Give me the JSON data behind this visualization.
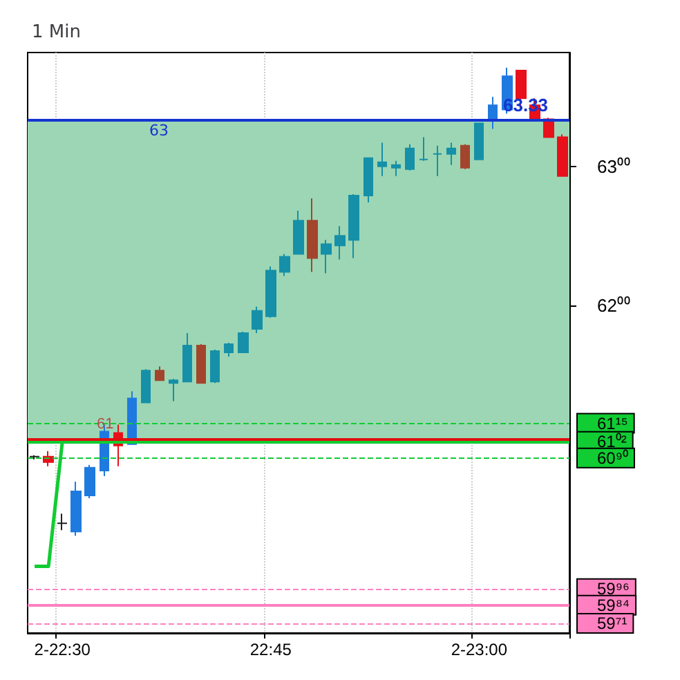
{
  "chart_data": {
    "type": "candlestick",
    "title": "1 Min",
    "categories": [
      null,
      null,
      "2-22:30",
      null,
      null,
      null,
      null,
      null,
      null,
      null,
      null,
      null,
      null,
      null,
      null,
      null,
      null,
      "22:45",
      null,
      null,
      null,
      null,
      null,
      null,
      null,
      null,
      null,
      null,
      null,
      null,
      null,
      null,
      "2-23:00",
      null,
      null,
      null,
      null,
      null,
      null
    ],
    "ohlc": [
      [
        60.91,
        60.92,
        60.89,
        60.91
      ],
      [
        60.91,
        60.95,
        60.84,
        60.87
      ],
      [
        60.43,
        60.5,
        60.38,
        60.43
      ],
      [
        60.37,
        60.73,
        60.34,
        60.66
      ],
      [
        60.63,
        60.85,
        60.61,
        60.83
      ],
      [
        60.81,
        61.14,
        60.77,
        61.09
      ],
      [
        61.08,
        61.14,
        60.84,
        60.99
      ],
      [
        61.0,
        61.38,
        61.0,
        61.33
      ],
      [
        61.3,
        61.54,
        61.3,
        61.53
      ],
      [
        61.53,
        61.56,
        61.46,
        61.46
      ],
      [
        61.44,
        61.47,
        61.31,
        61.46
      ],
      [
        61.45,
        61.8,
        61.45,
        61.71
      ],
      [
        61.71,
        61.72,
        61.44,
        61.44
      ],
      [
        61.45,
        61.68,
        61.44,
        61.67
      ],
      [
        61.66,
        61.73,
        61.63,
        61.72
      ],
      [
        61.66,
        61.81,
        61.66,
        61.8
      ],
      [
        61.83,
        61.99,
        61.8,
        61.96
      ],
      [
        61.92,
        62.28,
        61.91,
        62.25
      ],
      [
        62.24,
        62.37,
        62.21,
        62.35
      ],
      [
        62.37,
        62.68,
        62.37,
        62.61
      ],
      [
        62.61,
        62.77,
        62.24,
        62.34
      ],
      [
        62.37,
        62.47,
        62.23,
        62.44
      ],
      [
        62.43,
        62.57,
        62.33,
        62.5
      ],
      [
        62.47,
        62.8,
        62.34,
        62.79
      ],
      [
        62.79,
        63.06,
        62.74,
        63.06
      ],
      [
        63.0,
        63.17,
        62.93,
        63.03
      ],
      [
        62.99,
        63.04,
        62.93,
        63.01
      ],
      [
        62.98,
        63.16,
        62.97,
        63.13
      ],
      [
        63.05,
        63.21,
        63.04,
        63.05
      ],
      [
        63.09,
        63.15,
        62.93,
        63.09
      ],
      [
        63.09,
        63.17,
        63.01,
        63.13
      ],
      [
        63.15,
        63.16,
        62.98,
        62.99
      ],
      [
        63.05,
        63.31,
        63.05,
        63.31
      ],
      [
        63.33,
        63.5,
        63.27,
        63.44
      ],
      [
        63.41,
        63.71,
        63.38,
        63.65
      ],
      [
        63.69,
        63.69,
        63.41,
        63.49
      ],
      [
        63.44,
        63.49,
        63.33,
        63.34
      ],
      [
        63.34,
        63.35,
        63.21,
        63.21
      ],
      [
        63.21,
        63.23,
        62.93,
        62.93
      ]
    ],
    "colors": [
      "#222222",
      "#e8101a",
      "#222222",
      "#1f7ae0",
      "#1f7ae0",
      "#1f7ae0",
      "#e8101a",
      "#1f7ae0",
      "#1590a8",
      "#a3452d",
      "#1590a8",
      "#1590a8",
      "#a3452d",
      "#1590a8",
      "#1590a8",
      "#1590a8",
      "#1590a8",
      "#1590a8",
      "#1590a8",
      "#1590a8",
      "#a3452d",
      "#1590a8",
      "#1590a8",
      "#1590a8",
      "#1590a8",
      "#1590a8",
      "#1590a8",
      "#1590a8",
      "#1590a8",
      "#1590a8",
      "#1590a8",
      "#a3452d",
      "#1590a8",
      "#1f7ae0",
      "#1f7ae0",
      "#e8101a",
      "#e8101a",
      "#e8101a",
      "#e8101a"
    ],
    "series": [
      {
        "type": "line",
        "color": "#11cc33",
        "values": [
          60.12,
          60.12,
          61.02,
          null,
          null,
          null,
          null,
          null,
          null,
          null,
          null,
          null,
          null,
          null,
          null,
          null,
          null,
          null,
          null,
          null,
          null,
          null,
          null,
          null,
          null,
          null,
          null,
          null,
          null,
          null,
          null,
          null,
          null,
          null,
          null,
          null,
          null,
          null,
          null
        ]
      }
    ],
    "ylim": [
      59.64,
      63.82
    ],
    "yticks": [
      {
        "value": 63,
        "label": "63⁰⁰"
      },
      {
        "value": 62,
        "label": "62⁰⁰"
      }
    ],
    "grid": true,
    "bands": [
      {
        "axis": "y",
        "from": 61.02,
        "to": 63.33,
        "label": "63",
        "color": "#9dd6b4"
      }
    ],
    "ref_lines": [
      {
        "axis": "y",
        "value": 63.33,
        "label": "63.33",
        "color": "#1535d0",
        "line_style": "solid"
      },
      {
        "axis": "y",
        "value": 61.04,
        "label": "61",
        "color": "#e01010",
        "line_style": "solid"
      },
      {
        "axis": "y",
        "value": 61.15,
        "label": "61¹⁵",
        "color": "#11cc33",
        "line_style": "dashed"
      },
      {
        "axis": "y",
        "value": 61.02,
        "label": "61⁰²",
        "color": "#11cc33",
        "line_style": "solid"
      },
      {
        "axis": "y",
        "value": 60.9,
        "label": "60⁹⁰",
        "color": "#11cc33",
        "line_style": "dashed"
      },
      {
        "axis": "y",
        "value": 59.96,
        "label": "59⁹⁶",
        "color": "#ff80c0",
        "line_style": "dashed"
      },
      {
        "axis": "y",
        "value": 59.84,
        "label": "59⁸⁴",
        "color": "#ff80c0",
        "line_style": "solid"
      },
      {
        "axis": "y",
        "value": 59.71,
        "label": "59⁷¹",
        "color": "#ff80c0",
        "line_style": "dashed"
      }
    ]
  }
}
